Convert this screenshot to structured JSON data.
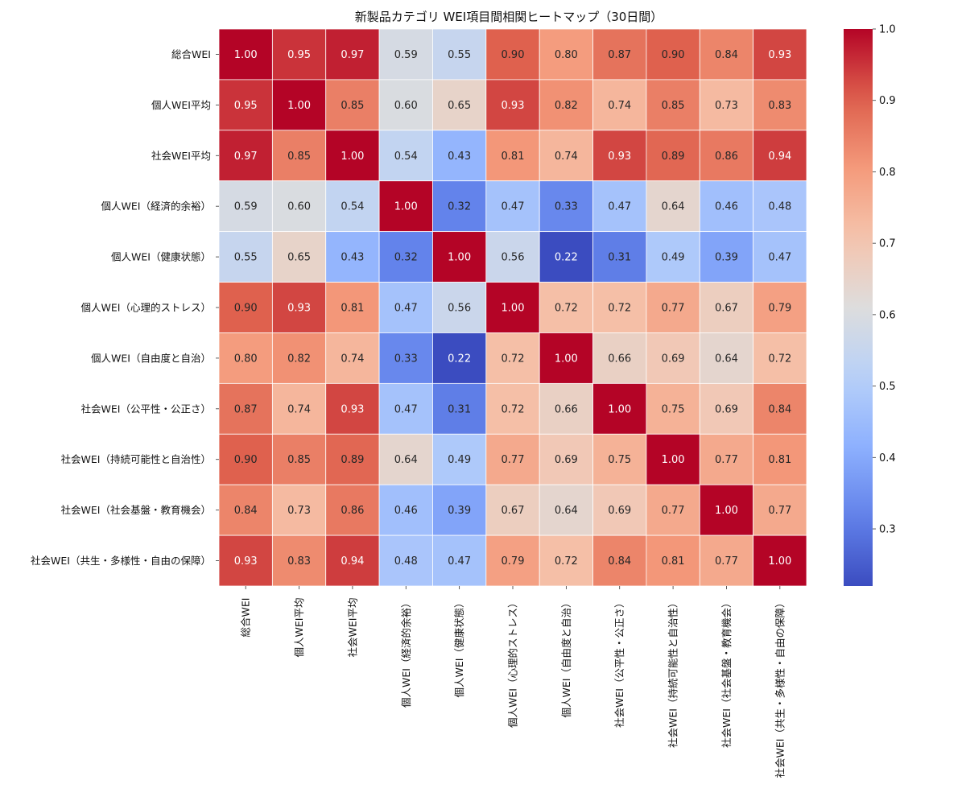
{
  "chart_data": {
    "type": "heatmap",
    "title": "新製品カテゴリ WEI項目間相関ヒートマップ（30日間）",
    "labels": [
      "総合WEI",
      "個人WEI平均",
      "社会WEI平均",
      "個人WEI（経済的余裕）",
      "個人WEI（健康状態）",
      "個人WEI（心理的ストレス）",
      "個人WEI（自由度と自治）",
      "社会WEI（公平性・公正さ）",
      "社会WEI（持続可能性と自治性）",
      "社会WEI（社会基盤・教育機会）",
      "社会WEI（共生・多様性・自由の保障）"
    ],
    "matrix": [
      [
        1.0,
        0.95,
        0.97,
        0.59,
        0.55,
        0.9,
        0.8,
        0.87,
        0.9,
        0.84,
        0.93
      ],
      [
        0.95,
        1.0,
        0.85,
        0.6,
        0.65,
        0.93,
        0.82,
        0.74,
        0.85,
        0.73,
        0.83
      ],
      [
        0.97,
        0.85,
        1.0,
        0.54,
        0.43,
        0.81,
        0.74,
        0.93,
        0.89,
        0.86,
        0.94
      ],
      [
        0.59,
        0.6,
        0.54,
        1.0,
        0.32,
        0.47,
        0.33,
        0.47,
        0.64,
        0.46,
        0.48
      ],
      [
        0.55,
        0.65,
        0.43,
        0.32,
        1.0,
        0.56,
        0.22,
        0.31,
        0.49,
        0.39,
        0.47
      ],
      [
        0.9,
        0.93,
        0.81,
        0.47,
        0.56,
        1.0,
        0.72,
        0.72,
        0.77,
        0.67,
        0.79
      ],
      [
        0.8,
        0.82,
        0.74,
        0.33,
        0.22,
        0.72,
        1.0,
        0.66,
        0.69,
        0.64,
        0.72
      ],
      [
        0.87,
        0.74,
        0.93,
        0.47,
        0.31,
        0.72,
        0.66,
        1.0,
        0.75,
        0.69,
        0.84
      ],
      [
        0.9,
        0.85,
        0.89,
        0.64,
        0.49,
        0.77,
        0.69,
        0.75,
        1.0,
        0.77,
        0.81
      ],
      [
        0.84,
        0.73,
        0.86,
        0.46,
        0.39,
        0.67,
        0.64,
        0.69,
        0.77,
        1.0,
        0.77
      ],
      [
        0.93,
        0.83,
        0.94,
        0.48,
        0.47,
        0.79,
        0.72,
        0.84,
        0.81,
        0.77,
        1.0
      ]
    ],
    "value_format": "0.00",
    "colormap": "coolwarm",
    "colorbar": {
      "min": 0.22,
      "max": 1.0,
      "ticks": [
        0.3,
        0.4,
        0.5,
        0.6,
        0.7,
        0.8,
        0.9,
        1.0
      ],
      "tick_labels": [
        "0.3",
        "0.4",
        "0.5",
        "0.6",
        "0.7",
        "0.8",
        "0.9",
        "1.0"
      ]
    }
  }
}
